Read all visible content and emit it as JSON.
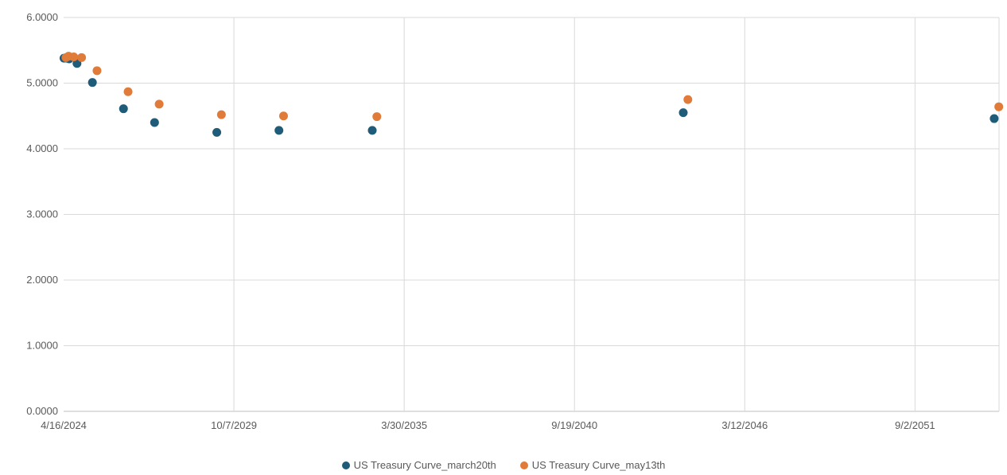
{
  "chart_data": {
    "type": "scatter",
    "title": "",
    "xlabel": "",
    "ylabel": "",
    "x_axis": {
      "type": "date",
      "min": "2024-04-16",
      "max": "2054-05-16",
      "tick_labels": [
        "4/16/2024",
        "10/7/2029",
        "3/30/2035",
        "9/19/2040",
        "3/12/2046",
        "9/2/2051"
      ],
      "tick_dates": [
        "2024-04-16",
        "2029-10-07",
        "2035-03-30",
        "2040-09-19",
        "2046-03-12",
        "2051-09-02"
      ]
    },
    "y_axis": {
      "min": 0,
      "max": 6,
      "tick_labels": [
        "0.0000",
        "1.0000",
        "2.0000",
        "3.0000",
        "4.0000",
        "5.0000",
        "6.0000"
      ],
      "tick_values": [
        0,
        1,
        2,
        3,
        4,
        5,
        6
      ]
    },
    "grid": true,
    "legend_position": "bottom",
    "series": [
      {
        "name": "US Treasury Curve_march20th",
        "color": "#1F5C7A",
        "points": [
          {
            "x": "2024-04-20",
            "y": 5.38
          },
          {
            "x": "2024-05-20",
            "y": 5.38
          },
          {
            "x": "2024-06-20",
            "y": 5.37
          },
          {
            "x": "2024-09-20",
            "y": 5.3
          },
          {
            "x": "2025-03-20",
            "y": 5.01
          },
          {
            "x": "2026-03-20",
            "y": 4.61
          },
          {
            "x": "2027-03-20",
            "y": 4.4
          },
          {
            "x": "2029-03-20",
            "y": 4.25
          },
          {
            "x": "2031-03-20",
            "y": 4.28
          },
          {
            "x": "2034-03-20",
            "y": 4.28
          },
          {
            "x": "2044-03-20",
            "y": 4.55
          },
          {
            "x": "2054-03-20",
            "y": 4.46
          }
        ]
      },
      {
        "name": "US Treasury Curve_may13th",
        "color": "#E07B39",
        "points": [
          {
            "x": "2024-05-13",
            "y": 5.39
          },
          {
            "x": "2024-06-13",
            "y": 5.41
          },
          {
            "x": "2024-08-13",
            "y": 5.4
          },
          {
            "x": "2024-11-13",
            "y": 5.39
          },
          {
            "x": "2025-05-13",
            "y": 5.19
          },
          {
            "x": "2026-05-13",
            "y": 4.87
          },
          {
            "x": "2027-05-13",
            "y": 4.68
          },
          {
            "x": "2029-05-13",
            "y": 4.52
          },
          {
            "x": "2031-05-13",
            "y": 4.5
          },
          {
            "x": "2034-05-13",
            "y": 4.49
          },
          {
            "x": "2044-05-13",
            "y": 4.75
          },
          {
            "x": "2054-05-13",
            "y": 4.64
          }
        ]
      }
    ]
  }
}
